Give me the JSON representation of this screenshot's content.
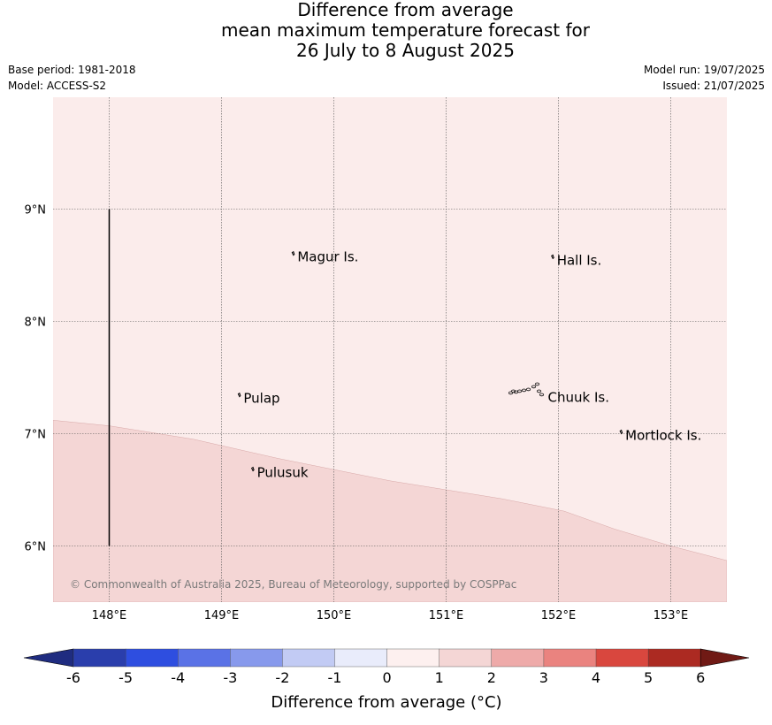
{
  "title": {
    "line1": "Difference from average",
    "line2": "mean maximum temperature forecast for",
    "line3": "26 July to 8 August 2025"
  },
  "meta": {
    "base_period": "Base period: 1981-2018",
    "model": "Model: ACCESS-S2",
    "model_run": "Model run: 19/07/2025",
    "issued": "Issued: 21/07/2025"
  },
  "map": {
    "lon_range": [
      147.5,
      153.5
    ],
    "lat_range": [
      5.5,
      10.0
    ],
    "lon_ticks": [
      {
        "value": 148,
        "label": "148°E"
      },
      {
        "value": 149,
        "label": "149°E"
      },
      {
        "value": 150,
        "label": "150°E"
      },
      {
        "value": 151,
        "label": "151°E"
      },
      {
        "value": 152,
        "label": "152°E"
      },
      {
        "value": 153,
        "label": "153°E"
      }
    ],
    "lat_ticks": [
      {
        "value": 9,
        "label": "9°N"
      },
      {
        "value": 8,
        "label": "8°N"
      },
      {
        "value": 7,
        "label": "7°N"
      },
      {
        "value": 6,
        "label": "6°N"
      }
    ],
    "places": [
      {
        "name": "Magur Is.",
        "lon": 149.66,
        "lat": 8.55
      },
      {
        "name": "Hall Is.",
        "lon": 151.97,
        "lat": 8.52
      },
      {
        "name": "Pulap",
        "lon": 149.18,
        "lat": 7.29
      },
      {
        "name": "Chuuk Is.",
        "lon": 151.89,
        "lat": 7.3
      },
      {
        "name": "Mortlock Is.",
        "lon": 152.58,
        "lat": 6.96
      },
      {
        "name": "Pulusuk",
        "lon": 149.3,
        "lat": 6.63
      }
    ],
    "boundary_line": {
      "lon": 148.0,
      "lat_from": 6.0,
      "lat_to": 9.0
    },
    "anomaly_regions": [
      {
        "category": "0 to 1",
        "color": "#fbeceb"
      },
      {
        "category": "1 to 2",
        "color": "#f4d6d5"
      }
    ],
    "copyright": "© Commonwealth of Australia 2025, Bureau of Meteorology, supported by COSPPac"
  },
  "colorbar": {
    "labels": [
      "-6",
      "-5",
      "-4",
      "-3",
      "-2",
      "-1",
      "0",
      "1",
      "2",
      "3",
      "4",
      "5",
      "6"
    ],
    "colors": [
      "#2a3eac",
      "#2e4ee0",
      "#5a72e6",
      "#8799ec",
      "#c2cbf4",
      "#e9ecfb",
      "#fdf0ef",
      "#f4d6d5",
      "#eeaaa9",
      "#ea837f",
      "#d9473e",
      "#ac2a22"
    ],
    "under_color": "#1f2c80",
    "over_color": "#701a15",
    "label": "Difference from average (°C)"
  },
  "colors": {
    "land_outline": "#000000",
    "grid": "#555555"
  }
}
